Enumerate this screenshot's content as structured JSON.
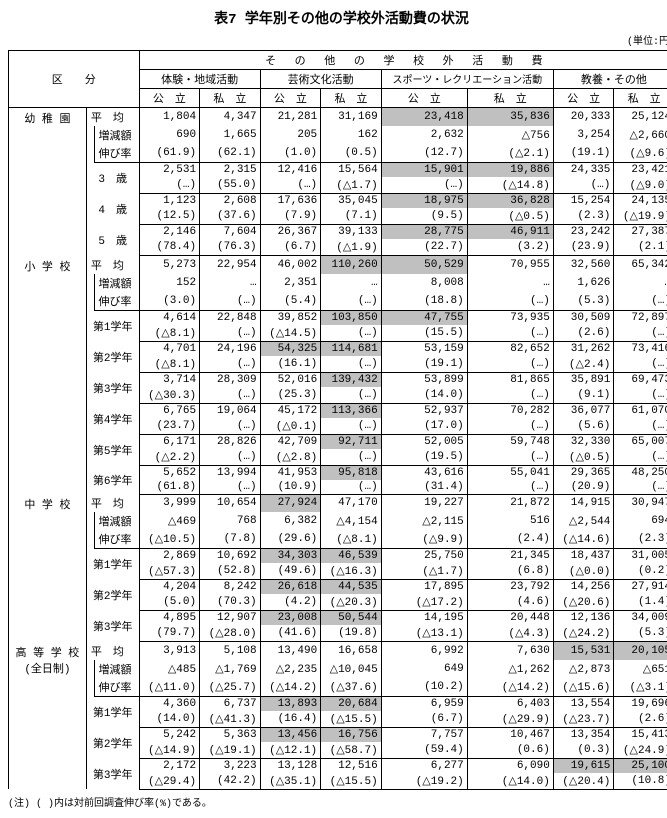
{
  "title": "表7 学年別その他の学校外活動費の状況",
  "unit": "(単位:円)",
  "note": "(注) ( )内は対前回調査伸び率(%)である。",
  "h": {
    "kubun": "区　　分",
    "super": "そ の 他 の 学 校 外 活 動 費",
    "g1": "体験・地域活動",
    "g2": "芸術文化活動",
    "g3": "スポーツ・レクリエーション活動",
    "g4": "教養・その他",
    "pub": "公　立",
    "pri": "私　立"
  },
  "cat": {
    "c1": "幼 稚 園",
    "c2": "小 学 校",
    "c3": "中 学 校",
    "c4": "高 等 学 校\n(全日制)"
  },
  "lbl": {
    "avg": "平　均",
    "inc": "増減額",
    "rate": "伸び率",
    "a3": "3　歳",
    "a4": "4　歳",
    "a5": "5　歳",
    "g1": "第1学年",
    "g2": "第2学年",
    "g3": "第3学年",
    "g4": "第4学年",
    "g5": "第5学年",
    "g6": "第6学年"
  },
  "r": {
    "y_avg": [
      "1,804",
      "4,347",
      "21,281",
      "31,169",
      "23,418",
      "35,836",
      "20,333",
      "25,124"
    ],
    "y_inc": [
      "690",
      "1,665",
      "205",
      "162",
      "2,632",
      "△756",
      "3,254",
      "△2,660"
    ],
    "y_rt": [
      "(61.9)",
      "(62.1)",
      "(1.0)",
      "(0.5)",
      "(12.7)",
      "(△2.1)",
      "(19.1)",
      "(△9.6)"
    ],
    "y3a": [
      "2,531",
      "2,315",
      "12,416",
      "15,564",
      "15,901",
      "19,886",
      "24,335",
      "23,421"
    ],
    "y3b": [
      "(…)",
      "(55.0)",
      "(…)",
      "(△1.7)",
      "(…)",
      "(△14.8)",
      "(…)",
      "(△9.0)"
    ],
    "y4a": [
      "1,123",
      "2,608",
      "17,636",
      "35,045",
      "18,975",
      "36,828",
      "15,254",
      "24,135"
    ],
    "y4b": [
      "(12.5)",
      "(37.6)",
      "(7.9)",
      "(7.1)",
      "(9.5)",
      "(△0.5)",
      "(2.3)",
      "(△19.9)"
    ],
    "y5a": [
      "2,146",
      "7,604",
      "26,367",
      "39,133",
      "28,775",
      "46,911",
      "23,242",
      "27,387"
    ],
    "y5b": [
      "(78.4)",
      "(76.3)",
      "(6.7)",
      "(△1.9)",
      "(22.7)",
      "(3.2)",
      "(23.9)",
      "(2.1)"
    ],
    "e_avg": [
      "5,273",
      "22,954",
      "46,002",
      "110,260",
      "50,529",
      "70,955",
      "32,560",
      "65,342"
    ],
    "e_inc": [
      "152",
      "…",
      "2,351",
      "…",
      "8,008",
      "…",
      "1,626",
      "…"
    ],
    "e_rt": [
      "(3.0)",
      "(…)",
      "(5.4)",
      "(…)",
      "(18.8)",
      "(…)",
      "(5.3)",
      "(…)"
    ],
    "e1a": [
      "4,614",
      "22,848",
      "39,852",
      "103,850",
      "47,755",
      "73,935",
      "30,509",
      "72,897"
    ],
    "e1b": [
      "(△8.1)",
      "(…)",
      "(△14.5)",
      "(…)",
      "(15.5)",
      "(…)",
      "(2.6)",
      "(…)"
    ],
    "e2a": [
      "4,701",
      "24,196",
      "54,325",
      "114,681",
      "53,159",
      "82,652",
      "31,262",
      "73,416"
    ],
    "e2b": [
      "(△8.1)",
      "(…)",
      "(16.1)",
      "(…)",
      "(19.1)",
      "(…)",
      "(△2.4)",
      "(…)"
    ],
    "e3a": [
      "3,714",
      "28,309",
      "52,016",
      "139,432",
      "53,899",
      "81,865",
      "35,891",
      "69,473"
    ],
    "e3b": [
      "(△30.3)",
      "(…)",
      "(25.3)",
      "(…)",
      "(14.0)",
      "(…)",
      "(9.1)",
      "(…)"
    ],
    "e4a": [
      "6,765",
      "19,064",
      "45,172",
      "113,366",
      "52,937",
      "70,282",
      "36,077",
      "61,070"
    ],
    "e4b": [
      "(23.7)",
      "(…)",
      "(△0.1)",
      "(…)",
      "(17.0)",
      "(…)",
      "(5.6)",
      "(…)"
    ],
    "e5a": [
      "6,171",
      "28,826",
      "42,709",
      "92,711",
      "52,005",
      "59,748",
      "32,330",
      "65,007"
    ],
    "e5b": [
      "(△2.2)",
      "(…)",
      "(△2.8)",
      "(…)",
      "(19.5)",
      "(…)",
      "(△0.5)",
      "(…)"
    ],
    "e6a": [
      "5,652",
      "13,994",
      "41,953",
      "95,818",
      "43,616",
      "55,041",
      "29,365",
      "48,250"
    ],
    "e6b": [
      "(61.8)",
      "(…)",
      "(10.9)",
      "(…)",
      "(31.4)",
      "(…)",
      "(20.9)",
      "(…)"
    ],
    "j_avg": [
      "3,999",
      "10,654",
      "27,924",
      "47,170",
      "19,227",
      "21,872",
      "14,915",
      "30,947"
    ],
    "j_inc": [
      "△469",
      "768",
      "6,382",
      "△4,154",
      "△2,115",
      "516",
      "△2,544",
      "694"
    ],
    "j_rt": [
      "(△10.5)",
      "(7.8)",
      "(29.6)",
      "(△8.1)",
      "(△9.9)",
      "(2.4)",
      "(△14.6)",
      "(2.3)"
    ],
    "j1a": [
      "2,869",
      "10,692",
      "34,303",
      "46,539",
      "25,750",
      "21,345",
      "18,437",
      "31,005"
    ],
    "j1b": [
      "(△57.3)",
      "(52.8)",
      "(49.6)",
      "(△16.3)",
      "(△1.7)",
      "(6.8)",
      "(△0.0)",
      "(0.2)"
    ],
    "j2a": [
      "4,204",
      "8,242",
      "26,618",
      "44,535",
      "17,895",
      "23,792",
      "14,256",
      "27,914"
    ],
    "j2b": [
      "(5.0)",
      "(70.3)",
      "(4.2)",
      "(△20.3)",
      "(△17.2)",
      "(4.6)",
      "(△20.6)",
      "(1.4)"
    ],
    "j3a": [
      "4,895",
      "12,907",
      "23,008",
      "50,544",
      "14,195",
      "20,448",
      "12,136",
      "34,009"
    ],
    "j3b": [
      "(79.7)",
      "(△28.0)",
      "(41.6)",
      "(19.8)",
      "(△13.1)",
      "(△4.3)",
      "(△24.2)",
      "(5.3)"
    ],
    "h_avg": [
      "3,913",
      "5,108",
      "13,490",
      "16,658",
      "6,992",
      "7,630",
      "15,531",
      "20,105"
    ],
    "h_inc": [
      "△485",
      "△1,769",
      "△2,235",
      "△10,045",
      "649",
      "△1,262",
      "△2,873",
      "△651"
    ],
    "h_rt": [
      "(△11.0)",
      "(△25.7)",
      "(△14.2)",
      "(△37.6)",
      "(10.2)",
      "(△14.2)",
      "(△15.6)",
      "(△3.1)"
    ],
    "h1a": [
      "4,360",
      "6,737",
      "13,893",
      "20,684",
      "6,959",
      "6,403",
      "13,554",
      "19,696"
    ],
    "h1b": [
      "(14.0)",
      "(△41.3)",
      "(16.4)",
      "(△15.5)",
      "(6.7)",
      "(△29.9)",
      "(△23.7)",
      "(2.6)"
    ],
    "h2a": [
      "5,242",
      "5,363",
      "13,456",
      "16,756",
      "7,757",
      "10,467",
      "13,354",
      "15,413"
    ],
    "h2b": [
      "(△14.9)",
      "(△19.1)",
      "(△12.1)",
      "(△58.7)",
      "(59.4)",
      "(0.6)",
      "(0.3)",
      "(△24.9)"
    ],
    "h3a": [
      "2,172",
      "3,223",
      "13,128",
      "12,516",
      "6,277",
      "6,090",
      "19,615",
      "25,100"
    ],
    "h3b": [
      "(△29.4)",
      "(42.2)",
      "(△35.1)",
      "(△15.5)",
      "(△19.2)",
      "(△14.0)",
      "(△20.4)",
      "(10.8)"
    ]
  },
  "shade": {
    "y_avg": [
      4,
      5
    ],
    "y3a": [
      4,
      5
    ],
    "y4a": [
      4,
      5
    ],
    "y5a": [
      4,
      5
    ],
    "e_avg": [
      3,
      4
    ],
    "e1a": [
      3,
      4
    ],
    "e2a": [
      2,
      3
    ],
    "e3a": [
      3
    ],
    "e4a": [
      3
    ],
    "e5a": [
      3
    ],
    "e6a": [
      3
    ],
    "j_avg": [
      2
    ],
    "j1a": [
      2,
      3
    ],
    "j2a": [
      2,
      3
    ],
    "j3a": [
      2,
      3
    ],
    "h_avg": [
      6,
      7
    ],
    "h1a": [
      2,
      3
    ],
    "h2a": [
      2,
      3
    ],
    "h3a": [
      6,
      7
    ]
  }
}
